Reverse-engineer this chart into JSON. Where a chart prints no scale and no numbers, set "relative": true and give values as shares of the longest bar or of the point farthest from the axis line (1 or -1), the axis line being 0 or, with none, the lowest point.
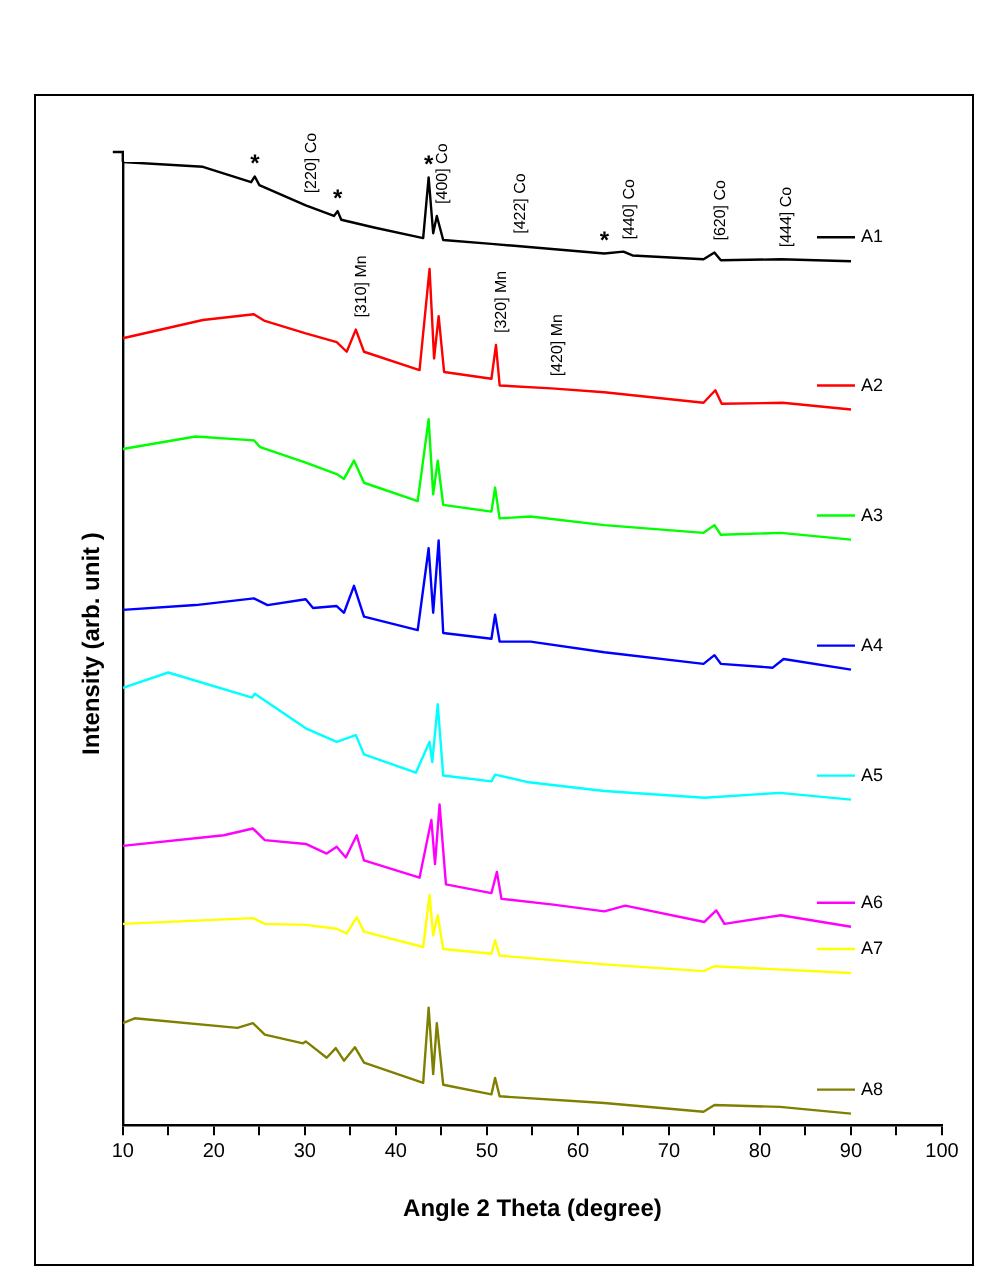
{
  "chart_data": {
    "type": "line",
    "relative": true,
    "xlabel": "Angle 2 Theta (degree)",
    "ylabel": "Intensity (arb. unit )",
    "xlim": [
      10,
      100
    ],
    "xticks": [
      10,
      {
        "value": 15,
        "label": null
      },
      20,
      {
        "value": 25,
        "label": null
      },
      30,
      {
        "value": 35,
        "label": null
      },
      40,
      {
        "value": 45,
        "label": null
      },
      50,
      {
        "value": 55,
        "label": null
      },
      60,
      {
        "value": 65,
        "label": null
      },
      70,
      {
        "value": 75,
        "label": null
      },
      80,
      {
        "value": 85,
        "label": null
      },
      90,
      {
        "value": 95,
        "label": null
      },
      100
    ],
    "marker": "none",
    "line_style": "solid",
    "legend": "right",
    "series": [
      {
        "name": "A1",
        "color": "#000000",
        "x": [
          10,
          18.8,
          24.1,
          24.5,
          25,
          30.1,
          33.2,
          33.6,
          34,
          37.6,
          43,
          43.6,
          44.1,
          44.5,
          45.2,
          50.5,
          53,
          62.9,
          65,
          66,
          73.8,
          75,
          75.7,
          82.3,
          90
        ],
        "values": [
          1.0,
          0.995,
          0.979,
          0.985,
          0.976,
          0.955,
          0.944,
          0.949,
          0.94,
          0.932,
          0.921,
          0.984,
          0.926,
          0.944,
          0.919,
          0.915,
          0.913,
          0.905,
          0.907,
          0.903,
          0.899,
          0.906,
          0.898,
          0.899,
          0.897
        ]
      },
      {
        "name": "A2",
        "color": "#ff0000",
        "x": [
          10,
          18.8,
          24.4,
          25.6,
          30.1,
          33.5,
          34.6,
          35.6,
          36.5,
          42.6,
          43.7,
          44.2,
          44.7,
          45.3,
          50.5,
          51,
          51.4,
          57.1,
          62.9,
          73.8,
          75.1,
          75.8,
          82.5,
          90
        ],
        "values": [
          0.817,
          0.836,
          0.842,
          0.835,
          0.822,
          0.813,
          0.803,
          0.826,
          0.803,
          0.784,
          0.889,
          0.796,
          0.84,
          0.782,
          0.775,
          0.81,
          0.768,
          0.765,
          0.761,
          0.75,
          0.763,
          0.749,
          0.75,
          0.743
        ]
      },
      {
        "name": "A3",
        "color": "#00ff00",
        "x": [
          10,
          18,
          24.4,
          25.1,
          30.1,
          33.5,
          34.3,
          35.4,
          36.5,
          42.4,
          43.6,
          44.1,
          44.6,
          45.2,
          50.5,
          50.9,
          51.4,
          54.8,
          62.9,
          73.8,
          75,
          75.7,
          82.3,
          90
        ],
        "values": [
          0.702,
          0.715,
          0.711,
          0.704,
          0.688,
          0.676,
          0.671,
          0.69,
          0.667,
          0.648,
          0.733,
          0.655,
          0.69,
          0.644,
          0.637,
          0.662,
          0.63,
          0.632,
          0.623,
          0.615,
          0.623,
          0.613,
          0.615,
          0.608
        ]
      },
      {
        "name": "A4",
        "color": "#0000ff",
        "x": [
          10,
          18,
          24.4,
          25.9,
          30.1,
          30.9,
          33.5,
          34.3,
          35.4,
          36.5,
          42.4,
          43.6,
          44.1,
          44.7,
          45.2,
          50.5,
          50.9,
          51.4,
          54.8,
          62.9,
          73.8,
          75,
          75.7,
          81.4,
          82.6,
          90
        ],
        "values": [
          0.535,
          0.54,
          0.547,
          0.54,
          0.546,
          0.537,
          0.539,
          0.532,
          0.56,
          0.528,
          0.514,
          0.599,
          0.532,
          0.607,
          0.511,
          0.505,
          0.53,
          0.502,
          0.502,
          0.491,
          0.479,
          0.488,
          0.479,
          0.475,
          0.484,
          0.473
        ]
      },
      {
        "name": "A5",
        "color": "#00ffff",
        "x": [
          10,
          15,
          24.2,
          24.5,
          30.1,
          33.5,
          35.6,
          36.5,
          42.2,
          43.7,
          44,
          44.6,
          45.2,
          50.5,
          50.9,
          54.6,
          62.9,
          73.9,
          82.2,
          90
        ],
        "values": [
          0.454,
          0.47,
          0.444,
          0.448,
          0.412,
          0.398,
          0.405,
          0.385,
          0.366,
          0.398,
          0.377,
          0.437,
          0.363,
          0.357,
          0.364,
          0.356,
          0.347,
          0.34,
          0.345,
          0.338
        ]
      },
      {
        "name": "A6",
        "color": "#ff00ff",
        "x": [
          10,
          21.1,
          24.3,
          25.6,
          30.1,
          32.4,
          33.5,
          34.5,
          35.7,
          36.5,
          42.6,
          43.9,
          44.3,
          44.8,
          45.5,
          50.5,
          51.1,
          51.6,
          57.3,
          62.9,
          65.2,
          73.9,
          75.2,
          76.1,
          82.3,
          90
        ],
        "values": [
          0.29,
          0.301,
          0.308,
          0.296,
          0.292,
          0.282,
          0.289,
          0.278,
          0.301,
          0.275,
          0.257,
          0.317,
          0.271,
          0.333,
          0.25,
          0.241,
          0.263,
          0.235,
          0.229,
          0.222,
          0.228,
          0.211,
          0.223,
          0.209,
          0.218,
          0.206
        ]
      },
      {
        "name": "A7",
        "color": "#ffff00",
        "x": [
          10,
          24.3,
          25.6,
          30.1,
          33.5,
          34.6,
          35.7,
          36.5,
          43,
          43.7,
          44.1,
          44.6,
          45.2,
          50.5,
          50.9,
          51.4,
          62.9,
          73.8,
          75,
          90
        ],
        "values": [
          0.209,
          0.215,
          0.209,
          0.208,
          0.204,
          0.199,
          0.216,
          0.201,
          0.185,
          0.239,
          0.197,
          0.218,
          0.183,
          0.178,
          0.192,
          0.176,
          0.167,
          0.16,
          0.165,
          0.158
        ]
      },
      {
        "name": "A8",
        "color": "#808000",
        "x": [
          10,
          11.3,
          22.6,
          24.3,
          25.6,
          29.8,
          30.1,
          32.4,
          33.4,
          34.3,
          35.5,
          36.5,
          43,
          43.6,
          44.1,
          44.5,
          45.2,
          50.5,
          50.9,
          51.4,
          62.9,
          73.8,
          75,
          82.2,
          90
        ],
        "values": [
          0.106,
          0.111,
          0.101,
          0.106,
          0.094,
          0.085,
          0.087,
          0.07,
          0.08,
          0.067,
          0.081,
          0.065,
          0.044,
          0.122,
          0.053,
          0.106,
          0.042,
          0.032,
          0.049,
          0.03,
          0.023,
          0.014,
          0.021,
          0.019,
          0.012
        ]
      }
    ],
    "annotations": [
      {
        "text": "*",
        "x": 24.5,
        "y": 0.985
      },
      {
        "text": "*",
        "x": 33.6,
        "y": 0.949
      },
      {
        "text": "*",
        "x": 43.6,
        "y": 0.984
      },
      {
        "text": "*",
        "x": 62.9,
        "y": 0.905
      },
      {
        "text": "[220] Co",
        "x": 30.1,
        "y": 0.955
      },
      {
        "text": "[400] Co",
        "x": 44.5,
        "y": 0.944
      },
      {
        "text": "[422] Co",
        "x": 53,
        "y": 0.913
      },
      {
        "text": "[440] Co",
        "x": 65,
        "y": 0.907
      },
      {
        "text": "[620] Co",
        "x": 75,
        "y": 0.906
      },
      {
        "text": "[444] Co",
        "x": 82.3,
        "y": 0.899
      },
      {
        "text": "[310] Mn",
        "x": 35.6,
        "y": 0.826
      },
      {
        "text": "[320] Mn",
        "x": 51,
        "y": 0.81
      },
      {
        "text": "[420] Mn",
        "x": 57.1,
        "y": 0.765
      }
    ]
  }
}
